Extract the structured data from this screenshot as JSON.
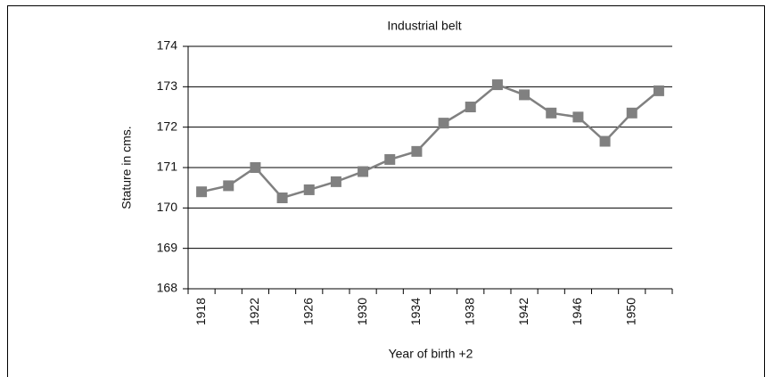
{
  "chart_data": {
    "type": "line",
    "title": "Industrial belt",
    "y_label": "Stature in cms.",
    "x_label": "Year of birth +2",
    "categories": [
      "1918",
      null,
      "1922",
      null,
      "1926",
      null,
      "1930",
      null,
      "1934",
      null,
      "1938",
      null,
      "1942",
      null,
      "1946",
      null,
      "1950",
      null
    ],
    "series": [
      {
        "name": "Industrial belt",
        "color": "#808080",
        "values": [
          170.4,
          170.55,
          171.0,
          170.25,
          170.45,
          170.65,
          170.9,
          171.2,
          171.4,
          172.1,
          172.5,
          173.05,
          172.8,
          172.35,
          172.25,
          171.65,
          172.35,
          172.9
        ]
      }
    ],
    "ylim": [
      168,
      174
    ],
    "yticks": [
      168,
      169,
      170,
      171,
      172,
      173,
      174
    ],
    "grid": true
  }
}
